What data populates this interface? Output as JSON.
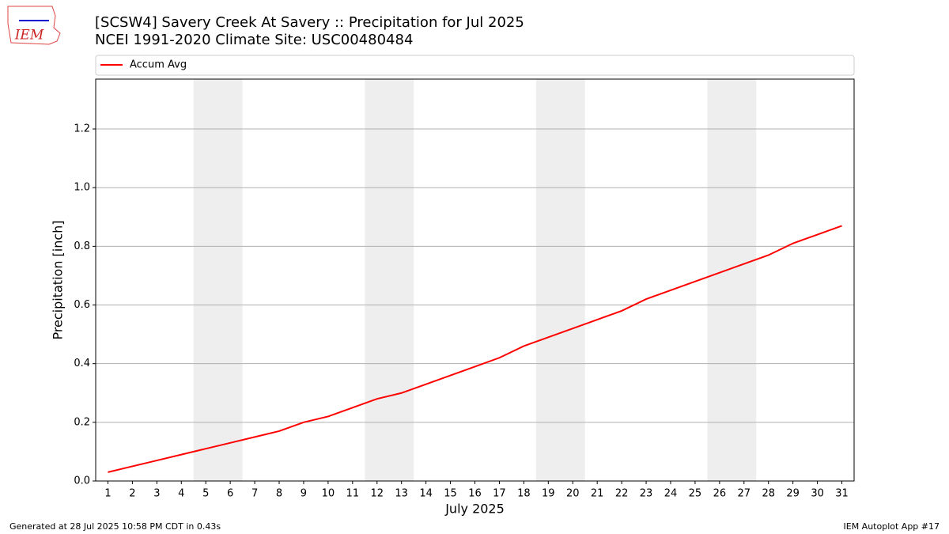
{
  "logo": "IEM",
  "footer_left": "Generated at 28 Jul 2025 10:58 PM CDT in 0.43s",
  "footer_right": "IEM Autoplot App #17",
  "chart_data": {
    "type": "line",
    "title": "[SCSW4] Savery Creek At Savery :: Precipitation for Jul 2025",
    "subtitle": "NCEI 1991-2020 Climate Site: USC00480484",
    "x_label": "July 2025",
    "y_label": "Precipitation [inch]",
    "x": [
      1,
      2,
      3,
      4,
      5,
      6,
      7,
      8,
      9,
      10,
      11,
      12,
      13,
      14,
      15,
      16,
      17,
      18,
      19,
      20,
      21,
      22,
      23,
      24,
      25,
      26,
      27,
      28,
      29,
      30,
      31
    ],
    "series": [
      {
        "name": "Accum Avg",
        "color": "#ff0000",
        "values": [
          0.03,
          0.05,
          0.07,
          0.09,
          0.11,
          0.13,
          0.15,
          0.17,
          0.2,
          0.22,
          0.25,
          0.28,
          0.3,
          0.33,
          0.36,
          0.39,
          0.42,
          0.46,
          0.49,
          0.52,
          0.55,
          0.58,
          0.62,
          0.65,
          0.68,
          0.71,
          0.74,
          0.77,
          0.81,
          0.84,
          0.87
        ]
      }
    ],
    "shaded_spans": [
      [
        4.5,
        6.5
      ],
      [
        11.5,
        13.5
      ],
      [
        18.5,
        20.5
      ],
      [
        25.5,
        27.5
      ]
    ],
    "shade_color": "#eeeeee",
    "xlim": [
      0.5,
      31.5
    ],
    "xticks": [
      1,
      2,
      3,
      4,
      5,
      6,
      7,
      8,
      9,
      10,
      11,
      12,
      13,
      14,
      15,
      16,
      17,
      18,
      19,
      20,
      21,
      22,
      23,
      24,
      25,
      26,
      27,
      28,
      29,
      30,
      31
    ],
    "ylim": [
      0,
      1.37
    ],
    "yticks": [
      {
        "value": 0,
        "label": "0.0"
      },
      0.2,
      0.4,
      0.6,
      0.8,
      {
        "value": 1,
        "label": "1.0"
      },
      1.2
    ],
    "grid": true,
    "legend": "top"
  }
}
